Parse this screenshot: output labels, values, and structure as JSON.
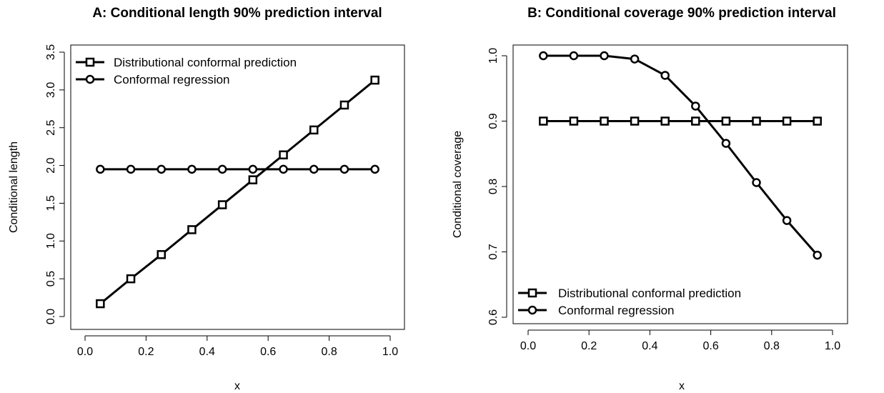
{
  "chart_data": [
    {
      "type": "line",
      "title": "A: Conditional length 90% prediction interval",
      "xlabel": "x",
      "ylabel": "Conditional length",
      "xlim": [
        0.0,
        1.0
      ],
      "ylim": [
        0.0,
        3.5
      ],
      "xticks": [
        "0.0",
        "0.2",
        "0.4",
        "0.6",
        "0.8",
        "1.0"
      ],
      "yticks": [
        "0.0",
        "0.5",
        "1.0",
        "1.5",
        "2.0",
        "2.5",
        "3.0",
        "3.5"
      ],
      "x": [
        0.05,
        0.15,
        0.25,
        0.35,
        0.45,
        0.55,
        0.65,
        0.75,
        0.85,
        0.95
      ],
      "legend_position": "top-left",
      "series": [
        {
          "name": "Distributional conformal prediction",
          "marker": "square",
          "values": [
            0.17,
            0.5,
            0.82,
            1.15,
            1.48,
            1.81,
            2.14,
            2.47,
            2.8,
            3.13
          ]
        },
        {
          "name": "Conformal regression",
          "marker": "circle",
          "values": [
            1.95,
            1.95,
            1.95,
            1.95,
            1.95,
            1.95,
            1.95,
            1.95,
            1.95,
            1.95
          ]
        }
      ]
    },
    {
      "type": "line",
      "title": "B: Conditional coverage 90% prediction interval",
      "xlabel": "x",
      "ylabel": "Conditional coverage",
      "xlim": [
        0.0,
        1.0
      ],
      "ylim": [
        0.6,
        1.0
      ],
      "xticks": [
        "0.0",
        "0.2",
        "0.4",
        "0.6",
        "0.8",
        "1.0"
      ],
      "yticks": [
        "0.6",
        "0.7",
        "0.8",
        "0.9",
        "1.0"
      ],
      "x": [
        0.05,
        0.15,
        0.25,
        0.35,
        0.45,
        0.55,
        0.65,
        0.75,
        0.85,
        0.95
      ],
      "legend_position": "bottom-left",
      "series": [
        {
          "name": "Distributional conformal prediction",
          "marker": "square",
          "values": [
            0.9,
            0.9,
            0.9,
            0.9,
            0.9,
            0.9,
            0.9,
            0.9,
            0.9,
            0.9
          ]
        },
        {
          "name": "Conformal regression",
          "marker": "circle",
          "values": [
            1.0,
            1.0,
            1.0,
            0.995,
            0.97,
            0.923,
            0.866,
            0.806,
            0.748,
            0.695
          ]
        }
      ]
    }
  ]
}
